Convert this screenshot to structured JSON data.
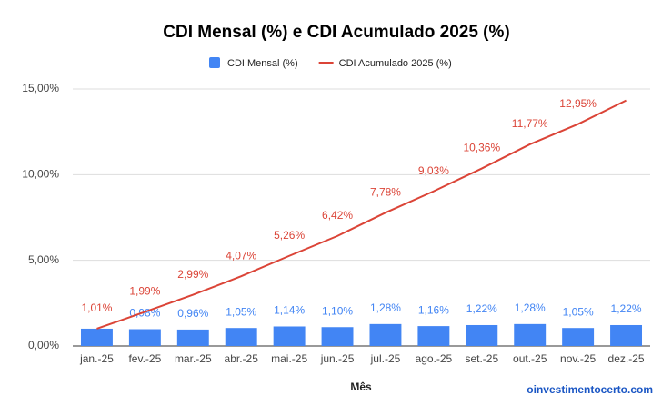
{
  "chart_data": {
    "type": "combo",
    "title": "CDI Mensal (%) e CDI Acumulado 2025 (%)",
    "x_label": "Mês",
    "watermark": "oinvestimentocerto.com",
    "categories": [
      "jan.-25",
      "fev.-25",
      "mar.-25",
      "abr.-25",
      "mai.-25",
      "jun.-25",
      "jul.-25",
      "ago.-25",
      "set.-25",
      "out.-25",
      "nov.-25",
      "dez.-25"
    ],
    "series": [
      {
        "name": "CDI Mensal (%)",
        "kind": "bar",
        "color": "#4285f4",
        "values": [
          1.01,
          0.98,
          0.96,
          1.05,
          1.14,
          1.1,
          1.28,
          1.16,
          1.22,
          1.28,
          1.05,
          1.22
        ],
        "value_labels": [
          null,
          "0,98%",
          "0,96%",
          "1,05%",
          "1,14%",
          "1,10%",
          "1,28%",
          "1,16%",
          "1,22%",
          "1,28%",
          "1,05%",
          "1,22%"
        ]
      },
      {
        "name": "CDI Acumulado 2025 (%)",
        "kind": "line",
        "color": "#db4437",
        "values": [
          1.01,
          1.99,
          2.99,
          4.07,
          5.26,
          6.42,
          7.78,
          9.03,
          10.36,
          11.77,
          12.95,
          14.33
        ],
        "value_labels": [
          "1,01%",
          "1,99%",
          "2,99%",
          "4,07%",
          "5,26%",
          "6,42%",
          "7,78%",
          "9,03%",
          "10,36%",
          "11,77%",
          "12,95%",
          null
        ]
      }
    ],
    "ylim": [
      0,
      15
    ],
    "yticks": [
      {
        "value": 0,
        "label": "0,00%"
      },
      {
        "value": 5,
        "label": "5,00%"
      },
      {
        "value": 10,
        "label": "10,00%"
      },
      {
        "value": 15,
        "label": "15,00%"
      }
    ],
    "grid": true,
    "legend": "top"
  }
}
